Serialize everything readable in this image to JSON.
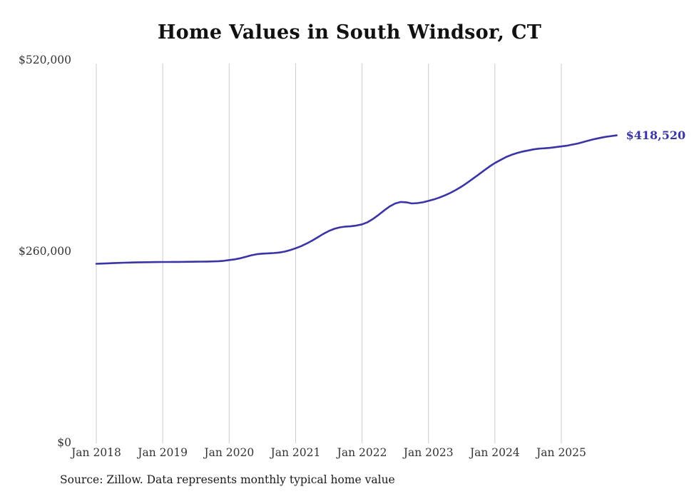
{
  "chart_data": {
    "type": "line",
    "title": "Home Values in South Windsor, CT",
    "source_note": "Source: Zillow. Data represents monthly typical home value",
    "series_name": "Monthly typical home value",
    "unit": "USD",
    "x_start": "Jan 2018",
    "x_end": "Nov 2025",
    "x_tick_labels": [
      "Jan 2018",
      "Jan 2019",
      "Jan 2020",
      "Jan 2021",
      "Jan 2022",
      "Jan 2023",
      "Jan 2024",
      "Jan 2025"
    ],
    "y_ticks": [
      {
        "label": "$0",
        "value": 0
      },
      {
        "label": "$260,000",
        "value": 260000
      },
      {
        "label": "$520,000",
        "value": 520000
      }
    ],
    "ylim": [
      0,
      520000
    ],
    "grid": "vertical-only",
    "legend": "none",
    "end_label": "$418,520",
    "end_value": 418520,
    "line_color": "#3a34a5",
    "gridline_color": "#cccccc",
    "values": [
      244000,
      244300,
      244600,
      244900,
      245200,
      245400,
      245600,
      245800,
      246000,
      246100,
      246200,
      246300,
      246400,
      246400,
      246500,
      246500,
      246600,
      246700,
      246800,
      246900,
      247000,
      247200,
      247500,
      248000,
      249000,
      250000,
      251500,
      253500,
      255500,
      257000,
      257800,
      258200,
      258500,
      259200,
      260500,
      262500,
      265000,
      268000,
      271500,
      275500,
      280000,
      284500,
      288500,
      291500,
      293500,
      294500,
      295000,
      296000,
      297500,
      300500,
      305000,
      310500,
      316500,
      322000,
      326000,
      328000,
      327500,
      326000,
      326500,
      327500,
      329500,
      331500,
      334000,
      337000,
      340500,
      344500,
      349000,
      354000,
      359500,
      365000,
      370500,
      376000,
      381000,
      385000,
      389000,
      392000,
      394500,
      396500,
      398000,
      399500,
      400500,
      401000,
      401500,
      402500,
      403500,
      404500,
      406000,
      407500,
      409500,
      411500,
      413500,
      415000,
      416500,
      417600,
      418520
    ]
  }
}
